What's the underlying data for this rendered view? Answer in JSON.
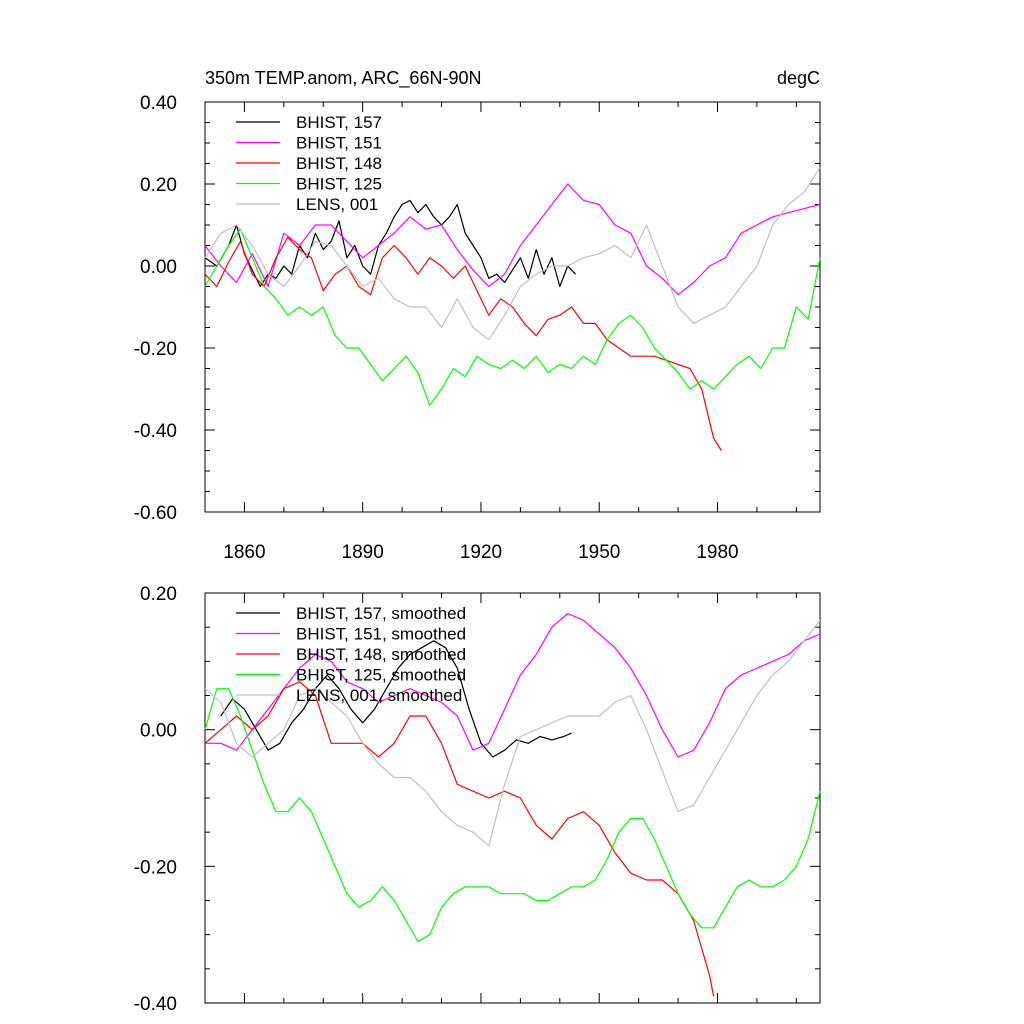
{
  "header": {
    "title": "350m TEMP.anom, ARC_66N-90N",
    "units": "degC"
  },
  "chart_data": [
    {
      "type": "line",
      "title": "350m TEMP.anom, ARC_66N-90N",
      "units": "degC",
      "xlim": [
        1850,
        2006
      ],
      "ylim": [
        -0.6,
        0.4
      ],
      "yticks": [
        -0.6,
        -0.4,
        -0.2,
        0.0,
        0.2,
        0.4
      ],
      "ytick_labels": [
        "-0.60",
        "-0.40",
        "-0.20",
        "0.00",
        "0.20",
        "0.40"
      ],
      "xticks": [
        1860,
        1890,
        1920,
        1950,
        1980
      ],
      "xtick_labels": [
        "1860",
        "1890",
        "1920",
        "1950",
        "1980"
      ],
      "legend_position": "top-left",
      "series": [
        {
          "name": "BHIST, 157",
          "color": "#000000",
          "x": [
            1850,
            1853,
            1856,
            1858,
            1860,
            1862,
            1864,
            1866,
            1868,
            1870,
            1872,
            1874,
            1876,
            1878,
            1880,
            1882,
            1884,
            1886,
            1888,
            1890,
            1892,
            1894,
            1896,
            1898,
            1900,
            1902,
            1904,
            1906,
            1908,
            1910,
            1912,
            1914,
            1916,
            1918,
            1920,
            1922,
            1924,
            1926,
            1928,
            1930,
            1932,
            1934,
            1936,
            1938,
            1940,
            1942,
            1944
          ],
          "y": [
            0.02,
            0.0,
            0.05,
            0.1,
            0.03,
            -0.01,
            -0.05,
            -0.02,
            -0.03,
            0.0,
            -0.02,
            0.05,
            0.02,
            0.08,
            0.04,
            0.06,
            0.11,
            0.02,
            0.05,
            0.0,
            -0.02,
            0.05,
            0.08,
            0.12,
            0.15,
            0.16,
            0.13,
            0.15,
            0.12,
            0.1,
            0.12,
            0.15,
            0.08,
            0.05,
            0.02,
            -0.03,
            -0.02,
            -0.04,
            -0.01,
            0.02,
            -0.03,
            0.04,
            -0.02,
            0.02,
            -0.05,
            0.0,
            -0.02
          ]
        },
        {
          "name": "BHIST, 151",
          "color": "#ff00ff",
          "x": [
            1850,
            1854,
            1858,
            1862,
            1866,
            1870,
            1874,
            1878,
            1882,
            1886,
            1890,
            1894,
            1898,
            1902,
            1906,
            1910,
            1914,
            1918,
            1922,
            1926,
            1930,
            1934,
            1938,
            1942,
            1946,
            1950,
            1954,
            1958,
            1962,
            1966,
            1970,
            1974,
            1978,
            1982,
            1986,
            1990,
            1994,
            1998,
            2002,
            2006
          ],
          "y": [
            0.05,
            0.0,
            -0.04,
            0.03,
            -0.05,
            0.08,
            0.05,
            0.1,
            0.1,
            0.06,
            0.02,
            0.05,
            0.08,
            0.12,
            0.09,
            0.1,
            0.04,
            -0.01,
            -0.05,
            -0.02,
            0.05,
            0.1,
            0.15,
            0.2,
            0.16,
            0.15,
            0.1,
            0.08,
            0.0,
            -0.03,
            -0.07,
            -0.04,
            0.0,
            0.02,
            0.08,
            0.1,
            0.12,
            0.13,
            0.14,
            0.15
          ]
        },
        {
          "name": "BHIST, 148",
          "color": "#ff0000",
          "x": [
            1850,
            1853,
            1856,
            1859,
            1862,
            1865,
            1868,
            1871,
            1874,
            1877,
            1880,
            1883,
            1886,
            1889,
            1892,
            1895,
            1898,
            1901,
            1904,
            1907,
            1910,
            1913,
            1916,
            1919,
            1922,
            1925,
            1928,
            1931,
            1934,
            1937,
            1940,
            1943,
            1946,
            1949,
            1952,
            1955,
            1958,
            1961,
            1964,
            1967,
            1970,
            1973,
            1976,
            1979,
            1981
          ],
          "y": [
            -0.02,
            -0.05,
            0.01,
            0.06,
            -0.02,
            -0.05,
            0.02,
            0.07,
            0.04,
            0.02,
            -0.06,
            -0.02,
            0.0,
            -0.05,
            -0.07,
            0.02,
            0.05,
            0.02,
            -0.02,
            0.02,
            0.0,
            -0.03,
            0.0,
            -0.06,
            -0.12,
            -0.08,
            -0.1,
            -0.14,
            -0.17,
            -0.13,
            -0.12,
            -0.1,
            -0.14,
            -0.14,
            -0.18,
            -0.2,
            -0.22,
            -0.22,
            -0.22,
            -0.23,
            -0.24,
            -0.25,
            -0.3,
            -0.42,
            -0.45
          ]
        },
        {
          "name": "BHIST, 125",
          "color": "#00ff00",
          "x": [
            1850,
            1853,
            1856,
            1859,
            1862,
            1865,
            1868,
            1871,
            1874,
            1877,
            1880,
            1883,
            1886,
            1889,
            1892,
            1895,
            1898,
            1901,
            1904,
            1907,
            1910,
            1913,
            1916,
            1919,
            1922,
            1925,
            1928,
            1931,
            1934,
            1937,
            1940,
            1943,
            1946,
            1949,
            1952,
            1955,
            1958,
            1961,
            1964,
            1967,
            1970,
            1973,
            1976,
            1979,
            1982,
            1985,
            1988,
            1991,
            1994,
            1997,
            2000,
            2003,
            2006
          ],
          "y": [
            -0.05,
            0.0,
            0.05,
            0.09,
            0.02,
            -0.05,
            -0.08,
            -0.12,
            -0.1,
            -0.12,
            -0.1,
            -0.17,
            -0.2,
            -0.2,
            -0.24,
            -0.28,
            -0.25,
            -0.22,
            -0.26,
            -0.34,
            -0.3,
            -0.25,
            -0.27,
            -0.22,
            -0.24,
            -0.25,
            -0.23,
            -0.25,
            -0.22,
            -0.26,
            -0.24,
            -0.25,
            -0.22,
            -0.24,
            -0.18,
            -0.14,
            -0.12,
            -0.15,
            -0.2,
            -0.23,
            -0.26,
            -0.3,
            -0.28,
            -0.3,
            -0.27,
            -0.24,
            -0.22,
            -0.25,
            -0.2,
            -0.2,
            -0.1,
            -0.13,
            0.02
          ]
        },
        {
          "name": "LENS, 001",
          "color": "#c0c0c0",
          "x": [
            1850,
            1854,
            1858,
            1862,
            1866,
            1870,
            1874,
            1878,
            1882,
            1886,
            1890,
            1894,
            1898,
            1902,
            1906,
            1910,
            1914,
            1918,
            1922,
            1926,
            1930,
            1934,
            1938,
            1942,
            1946,
            1950,
            1954,
            1958,
            1962,
            1966,
            1970,
            1974,
            1978,
            1982,
            1986,
            1990,
            1994,
            1998,
            2002,
            2006
          ],
          "y": [
            0.02,
            0.08,
            0.1,
            0.05,
            -0.02,
            -0.05,
            0.0,
            0.06,
            0.05,
            0.0,
            -0.05,
            -0.03,
            -0.08,
            -0.1,
            -0.1,
            -0.15,
            -0.08,
            -0.15,
            -0.18,
            -0.12,
            -0.05,
            -0.02,
            0.0,
            0.0,
            0.02,
            0.03,
            0.05,
            0.02,
            0.1,
            0.0,
            -0.1,
            -0.14,
            -0.12,
            -0.1,
            -0.05,
            0.0,
            0.1,
            0.15,
            0.18,
            0.24
          ]
        }
      ]
    },
    {
      "type": "line",
      "xlim": [
        1850,
        2006
      ],
      "ylim": [
        -0.4,
        0.2
      ],
      "yticks": [
        -0.4,
        -0.2,
        0.0,
        0.2
      ],
      "ytick_labels": [
        "-0.40",
        "-0.20",
        "0.00",
        "0.20"
      ],
      "legend_position": "top-left",
      "series": [
        {
          "name": "BHIST, 157, smoothed",
          "color": "#000000",
          "x": [
            1854,
            1857,
            1860,
            1863,
            1866,
            1869,
            1872,
            1875,
            1878,
            1881,
            1884,
            1887,
            1890,
            1893,
            1896,
            1899,
            1902,
            1905,
            1908,
            1911,
            1914,
            1917,
            1920,
            1923,
            1926,
            1929,
            1932,
            1935,
            1938,
            1941,
            1943
          ],
          "y": [
            0.02,
            0.045,
            0.03,
            0.0,
            -0.03,
            -0.02,
            0.01,
            0.03,
            0.06,
            0.08,
            0.06,
            0.03,
            0.01,
            0.03,
            0.06,
            0.09,
            0.11,
            0.12,
            0.13,
            0.12,
            0.09,
            0.03,
            -0.02,
            -0.04,
            -0.03,
            -0.015,
            -0.02,
            -0.01,
            -0.015,
            -0.01,
            -0.005
          ]
        },
        {
          "name": "BHIST, 151, smoothed",
          "color": "#ff00ff",
          "x": [
            1850,
            1854,
            1858,
            1862,
            1866,
            1870,
            1874,
            1878,
            1882,
            1886,
            1890,
            1894,
            1898,
            1902,
            1906,
            1910,
            1914,
            1918,
            1922,
            1926,
            1930,
            1934,
            1938,
            1942,
            1946,
            1950,
            1954,
            1958,
            1962,
            1966,
            1970,
            1974,
            1978,
            1982,
            1986,
            1990,
            1994,
            1998,
            2002,
            2006
          ],
          "y": [
            -0.02,
            -0.02,
            -0.03,
            0.0,
            0.03,
            0.06,
            0.09,
            0.11,
            0.1,
            0.07,
            0.06,
            0.04,
            0.05,
            0.06,
            0.05,
            0.04,
            0.02,
            -0.03,
            -0.02,
            0.03,
            0.08,
            0.11,
            0.15,
            0.17,
            0.16,
            0.14,
            0.12,
            0.09,
            0.05,
            0.0,
            -0.04,
            -0.03,
            0.01,
            0.06,
            0.08,
            0.09,
            0.1,
            0.11,
            0.13,
            0.14
          ]
        },
        {
          "name": "BHIST, 148, smoothed",
          "color": "#ff0000",
          "x": [
            1850,
            1854,
            1858,
            1862,
            1866,
            1870,
            1874,
            1878,
            1882,
            1886,
            1890,
            1894,
            1898,
            1902,
            1906,
            1910,
            1914,
            1918,
            1922,
            1926,
            1930,
            1934,
            1938,
            1942,
            1946,
            1950,
            1954,
            1958,
            1962,
            1966,
            1970,
            1974,
            1978,
            1979
          ],
          "y": [
            -0.02,
            0.0,
            0.02,
            0.0,
            0.02,
            0.06,
            0.07,
            0.05,
            -0.02,
            -0.02,
            -0.02,
            -0.04,
            -0.02,
            0.02,
            0.02,
            -0.02,
            -0.08,
            -0.09,
            -0.1,
            -0.09,
            -0.1,
            -0.14,
            -0.16,
            -0.13,
            -0.12,
            -0.14,
            -0.18,
            -0.21,
            -0.22,
            -0.22,
            -0.24,
            -0.28,
            -0.36,
            -0.39
          ]
        },
        {
          "name": "BHIST, 125, smoothed",
          "color": "#00ff00",
          "x": [
            1850,
            1853,
            1856,
            1859,
            1862,
            1865,
            1868,
            1871,
            1874,
            1877,
            1880,
            1883,
            1886,
            1889,
            1892,
            1895,
            1898,
            1901,
            1904,
            1907,
            1910,
            1913,
            1916,
            1919,
            1922,
            1925,
            1928,
            1931,
            1934,
            1937,
            1940,
            1943,
            1946,
            1949,
            1952,
            1955,
            1958,
            1961,
            1964,
            1967,
            1970,
            1973,
            1976,
            1979,
            1982,
            1985,
            1988,
            1991,
            1994,
            1997,
            2000,
            2003,
            2006
          ],
          "y": [
            0.0,
            0.06,
            0.06,
            0.02,
            -0.03,
            -0.08,
            -0.12,
            -0.12,
            -0.1,
            -0.12,
            -0.16,
            -0.2,
            -0.24,
            -0.26,
            -0.25,
            -0.23,
            -0.25,
            -0.28,
            -0.31,
            -0.3,
            -0.26,
            -0.24,
            -0.23,
            -0.23,
            -0.23,
            -0.24,
            -0.24,
            -0.24,
            -0.25,
            -0.25,
            -0.24,
            -0.23,
            -0.23,
            -0.22,
            -0.19,
            -0.15,
            -0.13,
            -0.13,
            -0.16,
            -0.2,
            -0.24,
            -0.27,
            -0.29,
            -0.29,
            -0.26,
            -0.23,
            -0.22,
            -0.23,
            -0.23,
            -0.22,
            -0.2,
            -0.16,
            -0.09
          ]
        },
        {
          "name": "LENS, 001, smoothed",
          "color": "#c0c0c0",
          "x": [
            1850,
            1854,
            1858,
            1862,
            1866,
            1870,
            1874,
            1878,
            1882,
            1886,
            1890,
            1894,
            1898,
            1902,
            1906,
            1910,
            1914,
            1918,
            1922,
            1926,
            1930,
            1934,
            1938,
            1942,
            1946,
            1950,
            1954,
            1958,
            1962,
            1966,
            1970,
            1974,
            1978,
            1982,
            1986,
            1990,
            1994,
            1998,
            2002,
            2006
          ],
          "y": [
            0.06,
            0.04,
            -0.02,
            -0.04,
            -0.02,
            0.0,
            0.05,
            0.06,
            0.04,
            0.02,
            -0.02,
            -0.05,
            -0.07,
            -0.07,
            -0.09,
            -0.12,
            -0.14,
            -0.15,
            -0.17,
            -0.08,
            -0.01,
            0.0,
            0.01,
            0.02,
            0.02,
            0.02,
            0.04,
            0.05,
            0.0,
            -0.06,
            -0.12,
            -0.11,
            -0.07,
            -0.03,
            0.01,
            0.05,
            0.08,
            0.1,
            0.13,
            0.16
          ]
        }
      ]
    }
  ]
}
